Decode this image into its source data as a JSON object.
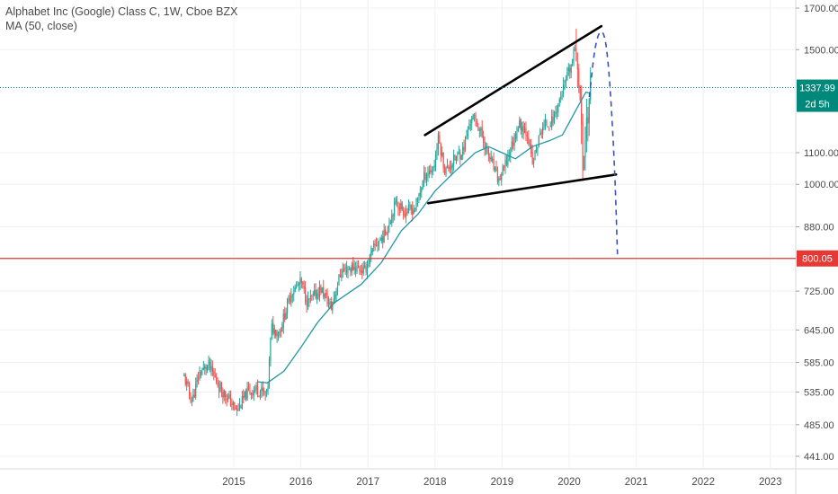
{
  "header": {
    "symbol_line": "Alphabet Inc (Google) Class C, 1W, Cboe BZX",
    "indicator_line": "MA (50, close)"
  },
  "colors": {
    "up_candle": "#26a69a",
    "down_candle": "#ef5350",
    "ma_line": "#2196a8",
    "support_line": "#e53935",
    "price_line": "#00897b",
    "trendline": "#000000",
    "projection": "#3f51b5",
    "grid": "#eef0f3",
    "axis_text": "#4a4a4a"
  },
  "chart_data": {
    "type": "candlestick",
    "title": "Alphabet Inc (Google) Class C, 1W, Cboe BZX",
    "indicator": "MA (50, close)",
    "scale": "log",
    "ylim": [
      441,
      1740
    ],
    "y_ticks": [
      {
        "value": 1700,
        "label": "1700.00"
      },
      {
        "value": 1500,
        "label": "1500.00"
      },
      {
        "value": 1100,
        "label": "1100.00"
      },
      {
        "value": 1000,
        "label": "1000.00"
      },
      {
        "value": 880,
        "label": "880.00"
      },
      {
        "value": 725,
        "label": "725.00"
      },
      {
        "value": 645,
        "label": "645.00"
      },
      {
        "value": 585,
        "label": "585.00"
      },
      {
        "value": 535,
        "label": "535.00"
      },
      {
        "value": 485,
        "label": "485.00"
      },
      {
        "value": 441,
        "label": "441.00"
      }
    ],
    "x_ticks": [
      {
        "year": 2015,
        "label": "2015"
      },
      {
        "year": 2016,
        "label": "2016"
      },
      {
        "year": 2017,
        "label": "2017"
      },
      {
        "year": 2018,
        "label": "2018"
      },
      {
        "year": 2019,
        "label": "2019"
      },
      {
        "year": 2020,
        "label": "2020"
      },
      {
        "year": 2021,
        "label": "2021"
      },
      {
        "year": 2022,
        "label": "2022"
      },
      {
        "year": 2023,
        "label": "2023"
      }
    ],
    "price_trajectory": [
      {
        "t": 2014.26,
        "p": 560
      },
      {
        "t": 2014.38,
        "p": 520
      },
      {
        "t": 2014.48,
        "p": 565
      },
      {
        "t": 2014.62,
        "p": 580
      },
      {
        "t": 2014.78,
        "p": 545
      },
      {
        "t": 2014.95,
        "p": 520
      },
      {
        "t": 2015.05,
        "p": 505
      },
      {
        "t": 2015.2,
        "p": 535
      },
      {
        "t": 2015.35,
        "p": 540
      },
      {
        "t": 2015.5,
        "p": 530
      },
      {
        "t": 2015.56,
        "p": 650
      },
      {
        "t": 2015.68,
        "p": 640
      },
      {
        "t": 2015.85,
        "p": 720
      },
      {
        "t": 2016.0,
        "p": 745
      },
      {
        "t": 2016.1,
        "p": 700
      },
      {
        "t": 2016.3,
        "p": 730
      },
      {
        "t": 2016.45,
        "p": 690
      },
      {
        "t": 2016.6,
        "p": 770
      },
      {
        "t": 2016.8,
        "p": 780
      },
      {
        "t": 2016.95,
        "p": 770
      },
      {
        "t": 2017.1,
        "p": 830
      },
      {
        "t": 2017.25,
        "p": 860
      },
      {
        "t": 2017.42,
        "p": 950
      },
      {
        "t": 2017.55,
        "p": 920
      },
      {
        "t": 2017.7,
        "p": 930
      },
      {
        "t": 2017.85,
        "p": 1030
      },
      {
        "t": 2017.98,
        "p": 1050
      },
      {
        "t": 2018.05,
        "p": 1150
      },
      {
        "t": 2018.15,
        "p": 1040
      },
      {
        "t": 2018.3,
        "p": 1080
      },
      {
        "t": 2018.42,
        "p": 1110
      },
      {
        "t": 2018.55,
        "p": 1230
      },
      {
        "t": 2018.65,
        "p": 1190
      },
      {
        "t": 2018.8,
        "p": 1090
      },
      {
        "t": 2018.95,
        "p": 1010
      },
      {
        "t": 2019.05,
        "p": 1060
      },
      {
        "t": 2019.25,
        "p": 1200
      },
      {
        "t": 2019.38,
        "p": 1170
      },
      {
        "t": 2019.45,
        "p": 1060
      },
      {
        "t": 2019.6,
        "p": 1190
      },
      {
        "t": 2019.75,
        "p": 1210
      },
      {
        "t": 2019.92,
        "p": 1340
      },
      {
        "t": 2020.02,
        "p": 1420
      },
      {
        "t": 2020.1,
        "p": 1520
      },
      {
        "t": 2020.15,
        "p": 1380
      },
      {
        "t": 2020.2,
        "p": 1060
      },
      {
        "t": 2020.25,
        "p": 1180
      },
      {
        "t": 2020.32,
        "p": 1337.99
      }
    ],
    "moving_average": [
      {
        "t": 2015.35,
        "p": 552
      },
      {
        "t": 2015.5,
        "p": 550
      },
      {
        "t": 2015.75,
        "p": 570
      },
      {
        "t": 2016.0,
        "p": 612
      },
      {
        "t": 2016.25,
        "p": 660
      },
      {
        "t": 2016.5,
        "p": 700
      },
      {
        "t": 2016.75,
        "p": 725
      },
      {
        "t": 2016.9,
        "p": 740
      },
      {
        "t": 2017.2,
        "p": 790
      },
      {
        "t": 2017.5,
        "p": 870
      },
      {
        "t": 2017.75,
        "p": 915
      },
      {
        "t": 2018.0,
        "p": 980
      },
      {
        "t": 2018.3,
        "p": 1040
      },
      {
        "t": 2018.6,
        "p": 1100
      },
      {
        "t": 2018.8,
        "p": 1120
      },
      {
        "t": 2019.0,
        "p": 1100
      },
      {
        "t": 2019.2,
        "p": 1080
      },
      {
        "t": 2019.45,
        "p": 1120
      },
      {
        "t": 2019.7,
        "p": 1140
      },
      {
        "t": 2019.9,
        "p": 1160
      },
      {
        "t": 2020.1,
        "p": 1250
      },
      {
        "t": 2020.25,
        "p": 1320
      },
      {
        "t": 2020.32,
        "p": 1315
      }
    ],
    "upper_trendline": [
      {
        "t": 2017.85,
        "p": 1160
      },
      {
        "t": 2020.48,
        "p": 1610
      }
    ],
    "lower_trendline": [
      {
        "t": 2017.9,
        "p": 945
      },
      {
        "t": 2020.7,
        "p": 1030
      }
    ],
    "projection_path": [
      {
        "t": 2020.3,
        "p": 1300
      },
      {
        "t": 2020.4,
        "p": 1560
      },
      {
        "t": 2020.52,
        "p": 1600
      },
      {
        "t": 2020.6,
        "p": 1400
      },
      {
        "t": 2020.68,
        "p": 1050
      },
      {
        "t": 2020.72,
        "p": 810
      }
    ],
    "horizontal_levels": [
      {
        "name": "support",
        "value": 800.05,
        "label": "800.05"
      },
      {
        "name": "last_price",
        "value": 1337.99,
        "label": "1337.99",
        "countdown": "2d 5h"
      }
    ],
    "grid": true
  }
}
